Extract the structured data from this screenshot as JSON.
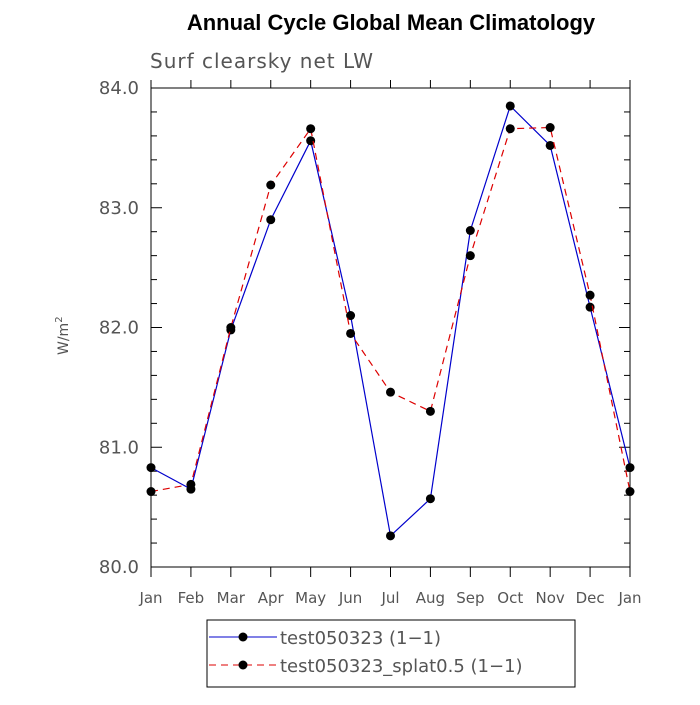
{
  "chart_data": {
    "type": "line",
    "title": "Annual Cycle Global Mean Climatology",
    "subtitle": "Surf clearsky net LW",
    "ylabel": "W/m",
    "ylabel_superscript": "2",
    "xlabel": "",
    "categories": [
      "Jan",
      "Feb",
      "Mar",
      "Apr",
      "May",
      "Jun",
      "Jul",
      "Aug",
      "Sep",
      "Oct",
      "Nov",
      "Dec",
      "Jan"
    ],
    "ylim": [
      80.0,
      84.0
    ],
    "yticks": [
      "80.0",
      "81.0",
      "82.0",
      "83.0",
      "84.0"
    ],
    "grid": false,
    "legend_position": "bottom",
    "series": [
      {
        "name": "test050323 (1−1)",
        "color": "#0000cc",
        "line_style": "solid",
        "marker": "filled-circle",
        "values": [
          80.83,
          80.65,
          81.98,
          82.9,
          83.56,
          82.1,
          80.26,
          80.57,
          82.81,
          83.85,
          83.52,
          82.17,
          80.83
        ]
      },
      {
        "name": "test050323_splat0.5 (1−1)",
        "color": "#dd0000",
        "line_style": "dashed",
        "marker": "filled-circle",
        "values": [
          80.63,
          80.69,
          82.0,
          83.19,
          83.66,
          81.95,
          81.46,
          81.3,
          82.6,
          83.66,
          83.67,
          82.27,
          80.63
        ]
      }
    ]
  }
}
